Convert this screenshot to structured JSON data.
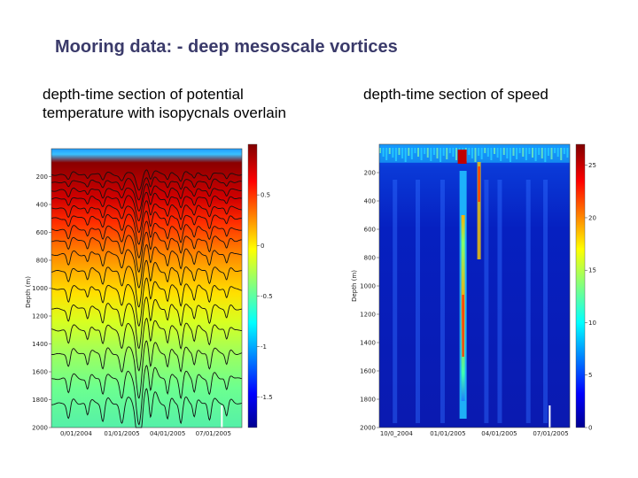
{
  "slide": {
    "title": "Mooring data: - deep mesoscale vortices",
    "caption_left": "depth-time section of potential temperature with isopycnals overlain",
    "caption_right": "depth-time section of speed"
  },
  "colors": {
    "title": "#3a3a6a",
    "jet_low": "#00008f",
    "jet_high": "#800000"
  },
  "chart_data": [
    {
      "type": "heatmap",
      "title": "depth-time section of potential temperature with isopycnals overlain",
      "ylabel": "Depth (m)",
      "xlabel": "",
      "ylim": [
        2000,
        0
      ],
      "yticks": [
        200,
        400,
        600,
        800,
        1000,
        1200,
        1400,
        1600,
        1800,
        2000
      ],
      "xticks": [
        "0/01/2004",
        "01/01/2005",
        "04/01/2005",
        "07/01/2005"
      ],
      "colorbar": {
        "ticks": [
          0.5,
          0,
          -0.5,
          -1,
          -1.5
        ],
        "range": [
          -1.8,
          1.0
        ]
      },
      "isopycnal_depths": [
        185,
        240,
        300,
        360,
        430,
        500,
        580,
        660,
        760,
        880,
        1010,
        1150,
        1300,
        1470,
        1650,
        1830
      ],
      "events": [
        {
          "time": 0.09,
          "amp": 40,
          "width": 0.012
        },
        {
          "time": 0.19,
          "amp": 30,
          "width": 0.01
        },
        {
          "time": 0.27,
          "amp": 45,
          "width": 0.012
        },
        {
          "time": 0.37,
          "amp": 55,
          "width": 0.015
        },
        {
          "time": 0.46,
          "amp": 130,
          "width": 0.02
        },
        {
          "time": 0.52,
          "amp": 70,
          "width": 0.012
        },
        {
          "time": 0.61,
          "amp": 40,
          "width": 0.01
        },
        {
          "time": 0.68,
          "amp": 55,
          "width": 0.012
        },
        {
          "time": 0.75,
          "amp": 35,
          "width": 0.01
        },
        {
          "time": 0.83,
          "amp": 45,
          "width": 0.012
        },
        {
          "time": 0.92,
          "amp": 30,
          "width": 0.01
        }
      ]
    },
    {
      "type": "heatmap",
      "title": "depth-time section of speed",
      "ylabel": "Depth (m)",
      "xlabel": "",
      "ylim": [
        2000,
        0
      ],
      "yticks": [
        200,
        400,
        600,
        800,
        1000,
        1200,
        1400,
        1600,
        1800,
        2000
      ],
      "xticks": [
        "10/0_2004",
        "01/01/2005",
        "04/01/2005",
        "07/01/2005"
      ],
      "colorbar": {
        "ticks": [
          25,
          20,
          15,
          10,
          5,
          0
        ],
        "range": [
          0,
          27
        ]
      },
      "max_speed_depth_band": [
        0,
        130
      ],
      "vortex_time_center": 0.44
    }
  ]
}
